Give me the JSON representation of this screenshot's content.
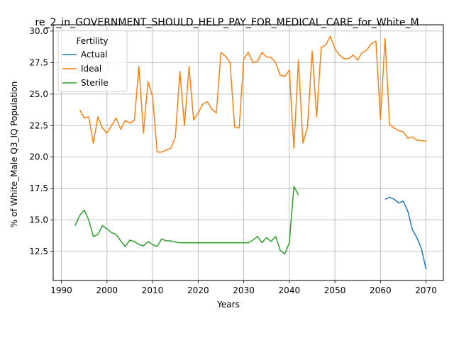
{
  "chart_data": {
    "type": "line",
    "title": "re_2_in_GOVERNMENT_SHOULD_HELP_PAY_FOR_MEDICAL_CARE_for_White_M",
    "xlabel": "Years",
    "ylabel": "% of White_Male Q3_IQ Population",
    "xlim": [
      1988.2,
      2073.8
    ],
    "ylim": [
      10.2,
      30.5
    ],
    "xticks": [
      1990,
      2000,
      2010,
      2020,
      2030,
      2040,
      2050,
      2060,
      2070
    ],
    "yticks": [
      12.5,
      15.0,
      17.5,
      20.0,
      22.5,
      25.0,
      27.5,
      30.0
    ],
    "ytick_labels": [
      "12.5",
      "15.0",
      "17.5",
      "20.0",
      "22.5",
      "25.0",
      "27.5",
      "30.0"
    ],
    "grid": true,
    "legend": {
      "title": "Fertility",
      "position": "top-left"
    },
    "series": [
      {
        "name": "Actual",
        "color": "#1f77b4",
        "x": [
          2061,
          2062,
          2063,
          2064,
          2065,
          2066,
          2067,
          2068,
          2069,
          2070
        ],
        "y": [
          16.65,
          16.8,
          16.65,
          16.35,
          16.5,
          15.7,
          14.25,
          13.6,
          12.7,
          11.1
        ]
      },
      {
        "name": "Ideal",
        "color": "#ff7f0e",
        "x": [
          1994,
          1995,
          1996,
          1997,
          1998,
          1999,
          2000,
          2001,
          2002,
          2003,
          2004,
          2005,
          2006,
          2007,
          2008,
          2009,
          2010,
          2011,
          2012,
          2013,
          2014,
          2015,
          2016,
          2017,
          2018,
          2019,
          2020,
          2021,
          2022,
          2023,
          2024,
          2025,
          2026,
          2027,
          2028,
          2029,
          2030,
          2031,
          2032,
          2033,
          2034,
          2035,
          2036,
          2037,
          2038,
          2039,
          2040,
          2041,
          2042,
          2043,
          2044,
          2045,
          2046,
          2047,
          2048,
          2049,
          2050,
          2051,
          2052,
          2053,
          2054,
          2055,
          2056,
          2057,
          2058,
          2059,
          2060,
          2061,
          2062,
          2063,
          2064,
          2065,
          2066,
          2067,
          2068,
          2069,
          2070
        ],
        "y": [
          23.75,
          23.1,
          23.2,
          21.1,
          23.2,
          22.3,
          21.9,
          22.5,
          23.1,
          22.2,
          22.9,
          22.7,
          22.9,
          27.2,
          21.9,
          26.0,
          24.8,
          20.4,
          20.4,
          20.55,
          20.7,
          21.6,
          26.8,
          22.5,
          27.2,
          22.95,
          23.5,
          24.2,
          24.4,
          23.8,
          23.5,
          28.3,
          28.0,
          27.5,
          22.4,
          22.3,
          27.8,
          28.3,
          27.5,
          27.6,
          28.3,
          27.95,
          27.9,
          27.5,
          26.5,
          26.4,
          26.9,
          20.7,
          27.7,
          21.1,
          22.4,
          28.4,
          23.2,
          28.7,
          28.9,
          29.6,
          28.6,
          28.1,
          27.8,
          27.8,
          28.1,
          27.7,
          28.3,
          28.5,
          29.0,
          29.2,
          23.0,
          29.4,
          22.6,
          22.3,
          22.1,
          22.0,
          21.5,
          21.6,
          21.35,
          21.3,
          21.25
        ]
      },
      {
        "name": "Sterile",
        "color": "#2ca02c",
        "x": [
          1993,
          1994,
          1995,
          1996,
          1997,
          1998,
          1999,
          2000,
          2001,
          2002,
          2003,
          2004,
          2005,
          2006,
          2007,
          2008,
          2009,
          2010,
          2011,
          2012,
          2013,
          2014,
          2015,
          2016,
          2017,
          2018,
          2019,
          2020,
          2021,
          2022,
          2023,
          2024,
          2025,
          2026,
          2027,
          2028,
          2029,
          2030,
          2031,
          2032,
          2033,
          2034,
          2035,
          2036,
          2037,
          2038,
          2039,
          2040,
          2041,
          2042
        ],
        "y": [
          14.55,
          15.35,
          15.8,
          15.0,
          13.7,
          13.85,
          14.55,
          14.3,
          14.0,
          13.85,
          13.35,
          12.9,
          13.4,
          13.3,
          13.05,
          12.95,
          13.3,
          13.05,
          12.9,
          13.5,
          13.35,
          13.35,
          13.25,
          13.2,
          13.2,
          13.2,
          13.2,
          13.2,
          13.2,
          13.2,
          13.2,
          13.2,
          13.2,
          13.2,
          13.2,
          13.2,
          13.2,
          13.2,
          13.2,
          13.4,
          13.7,
          13.2,
          13.6,
          13.3,
          13.7,
          12.6,
          12.3,
          13.2,
          17.65,
          17.0
        ]
      }
    ]
  }
}
